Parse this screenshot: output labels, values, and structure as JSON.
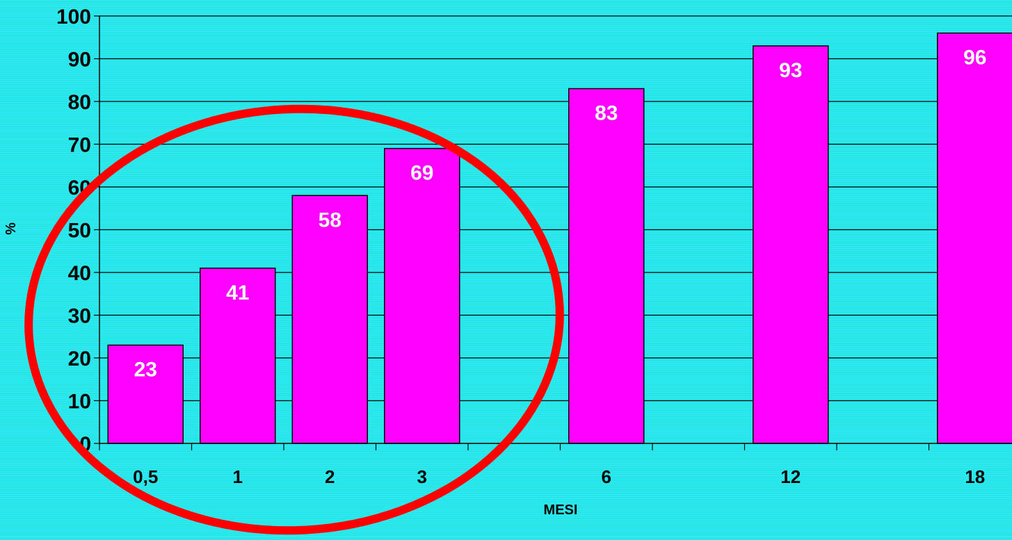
{
  "chart_data": {
    "type": "bar",
    "x_positions": [
      0.5,
      1,
      2,
      3,
      6,
      12,
      18
    ],
    "categories": [
      "0,5",
      "1",
      "2",
      "3",
      "6",
      "12",
      "18"
    ],
    "values": [
      23,
      41,
      58,
      69,
      83,
      93,
      96
    ],
    "data_labels": [
      "23",
      "41",
      "58",
      "69",
      "83",
      "93",
      "96"
    ],
    "xlabel": "MESI",
    "ylabel": "%",
    "ylim": [
      0,
      100
    ],
    "yticks": [
      0,
      10,
      20,
      30,
      40,
      50,
      60,
      70,
      80,
      90,
      100
    ],
    "ytick_labels": [
      "0",
      "10",
      "20",
      "30",
      "40",
      "50",
      "60",
      "70",
      "80",
      "90",
      "100"
    ],
    "grid": true,
    "highlight": "red ellipse around first four bars",
    "colors": {
      "background": "#22e6ea",
      "bar_fill": "#ff00ff",
      "bar_stroke": "#000000",
      "data_label": "#ffffff",
      "gridline": "#000000",
      "highlight_ellipse": "#ff0000"
    }
  }
}
